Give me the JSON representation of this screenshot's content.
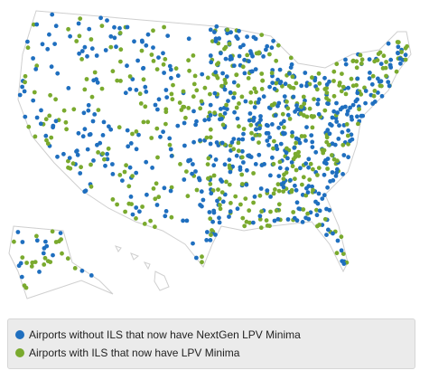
{
  "legend": {
    "items": [
      {
        "label": "Airports without ILS that now have NextGen LPV Minima",
        "color": "#1f6fbf"
      },
      {
        "label": "Airports with ILS that now have LPV Minima",
        "color": "#7aaa2e"
      }
    ]
  }
}
